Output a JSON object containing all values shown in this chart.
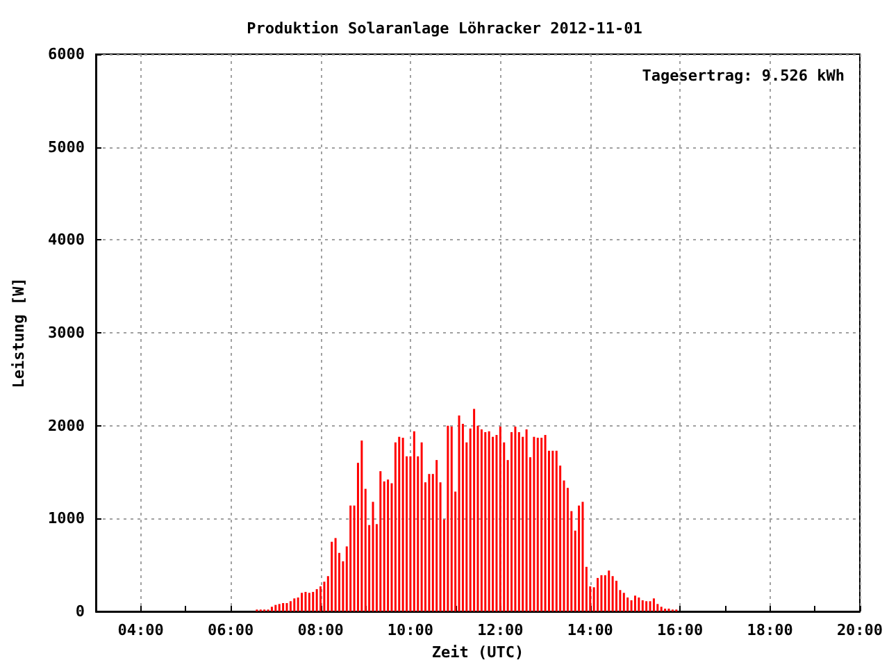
{
  "chart_data": {
    "type": "bar",
    "title": "Produktion Solaranlage Löhracker 2012-11-01",
    "xlabel": "Zeit (UTC)",
    "ylabel": "Leistung [W]",
    "annotations": [
      "Tagesertrag: 9.526 kWh"
    ],
    "x": [
      6.5833,
      6.6667,
      6.75,
      6.8333,
      6.9167,
      7,
      7.0833,
      7.1667,
      7.25,
      7.3333,
      7.4167,
      7.5,
      7.5833,
      7.6667,
      7.75,
      7.8333,
      7.9167,
      8,
      8.0833,
      8.1667,
      8.25,
      8.3333,
      8.4167,
      8.5,
      8.5833,
      8.6667,
      8.75,
      8.8333,
      8.9167,
      9,
      9.0833,
      9.1667,
      9.25,
      9.3333,
      9.4167,
      9.5,
      9.5833,
      9.6667,
      9.75,
      9.8333,
      9.9167,
      10,
      10.0833,
      10.1667,
      10.25,
      10.3333,
      10.4167,
      10.5,
      10.5833,
      10.6667,
      10.75,
      10.8333,
      10.9167,
      11,
      11.0833,
      11.1667,
      11.25,
      11.3333,
      11.4167,
      11.5,
      11.5833,
      11.6667,
      11.75,
      11.8333,
      11.9167,
      12,
      12.0833,
      12.1667,
      12.25,
      12.3333,
      12.4167,
      12.5,
      12.5833,
      12.6667,
      12.75,
      12.8333,
      12.9167,
      13,
      13.0833,
      13.1667,
      13.25,
      13.3333,
      13.4167,
      13.5,
      13.5833,
      13.6667,
      13.75,
      13.8333,
      13.9167,
      14,
      14.0833,
      14.1667,
      14.25,
      14.3333,
      14.4167,
      14.5,
      14.5833,
      14.6667,
      14.75,
      14.8333,
      14.9167,
      15,
      15.0833,
      15.1667,
      15.25,
      15.3333,
      15.4167,
      15.5,
      15.5833,
      15.6667,
      15.75,
      15.8333,
      15.9167
    ],
    "series": [
      {
        "color": "#ff0000",
        "values": [
          20,
          20,
          20,
          20,
          50,
          70,
          80,
          90,
          90,
          110,
          140,
          150,
          200,
          210,
          200,
          210,
          240,
          270,
          320,
          380,
          750,
          790,
          630,
          540,
          700,
          1140,
          1140,
          1600,
          1840,
          1320,
          930,
          1180,
          940,
          1510,
          1400,
          1420,
          1380,
          1820,
          1880,
          1870,
          1670,
          1670,
          1940,
          1670,
          1820,
          1390,
          1480,
          1480,
          1630,
          1390,
          990,
          2000,
          1990,
          1290,
          2110,
          2020,
          1820,
          1970,
          2180,
          2000,
          1960,
          1930,
          1940,
          1880,
          1900,
          1990,
          1820,
          1630,
          1930,
          1990,
          1930,
          1880,
          1960,
          1660,
          1880,
          1870,
          1870,
          1900,
          1730,
          1730,
          1730,
          1570,
          1410,
          1330,
          1080,
          870,
          1140,
          1180,
          480,
          270,
          260,
          360,
          390,
          390,
          440,
          380,
          330,
          230,
          200,
          150,
          120,
          170,
          150,
          120,
          110,
          110,
          140,
          80,
          50,
          30,
          30,
          20,
          20
        ]
      }
    ],
    "xlim": [
      3,
      20
    ],
    "xticks": [
      {
        "value": 3,
        "label": null
      },
      {
        "value": 4,
        "label": "04:00"
      },
      {
        "value": 5,
        "label": null
      },
      {
        "value": 6,
        "label": "06:00"
      },
      {
        "value": 7,
        "label": null
      },
      {
        "value": 8,
        "label": "08:00"
      },
      {
        "value": 9,
        "label": null
      },
      {
        "value": 10,
        "label": "10:00"
      },
      {
        "value": 11,
        "label": null
      },
      {
        "value": 12,
        "label": "12:00"
      },
      {
        "value": 13,
        "label": null
      },
      {
        "value": 14,
        "label": "14:00"
      },
      {
        "value": 15,
        "label": null
      },
      {
        "value": 16,
        "label": "16:00"
      },
      {
        "value": 17,
        "label": null
      },
      {
        "value": 18,
        "label": "18:00"
      },
      {
        "value": 19,
        "label": null
      },
      {
        "value": 20,
        "label": "20:00"
      }
    ],
    "ylim": [
      0,
      6000
    ],
    "yticks": [
      0,
      1000,
      2000,
      3000,
      4000,
      5000,
      6000
    ],
    "grid": true
  }
}
